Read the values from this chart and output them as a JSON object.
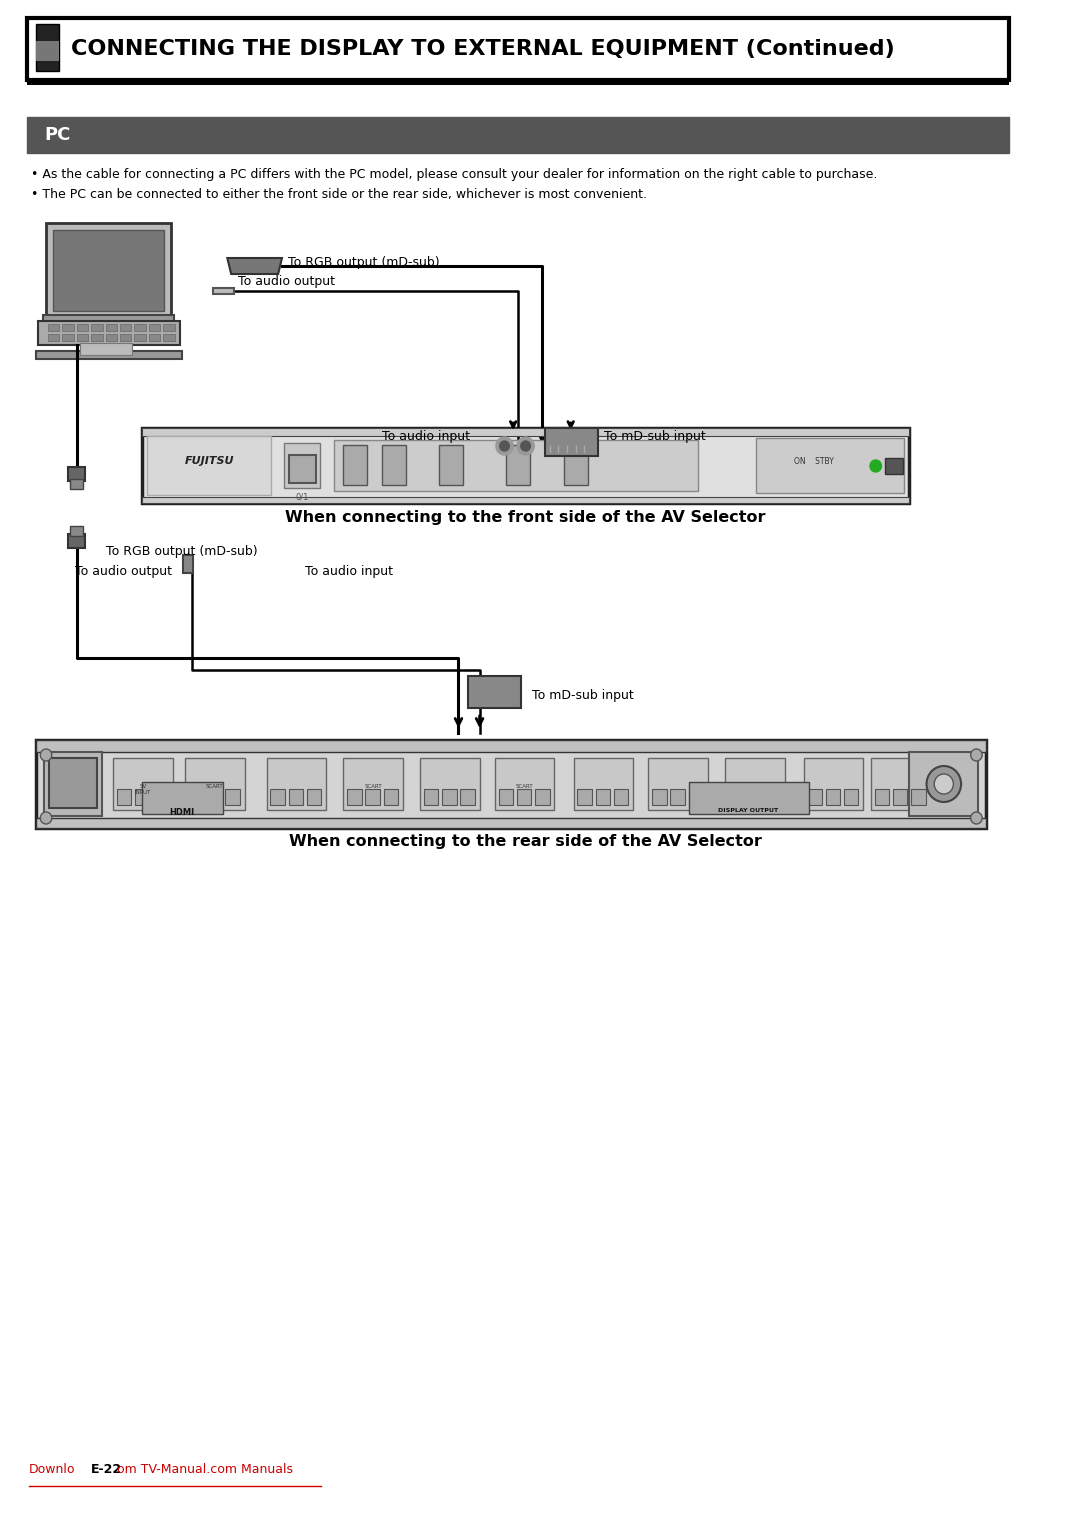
{
  "title": "CONNECTING THE DISPLAY TO EXTERNAL EQUIPMENT (Continued)",
  "section_title": "PC",
  "bullet1": "As the cable for connecting a PC differs with the PC model, please consult your dealer for information on the right cable to purchase.",
  "bullet2": "The PC can be connected to either the front side or the rear side, whichever is most convenient.",
  "front_caption": "When connecting to the front side of the AV Selector",
  "rear_caption": "When connecting to the rear side of the AV Selector",
  "label_rgb_out": "To RGB output (mD-sub)",
  "label_audio_out_top": "To audio output",
  "label_audio_in_top": "To audio input",
  "label_mdsub_top": "To mD-sub input",
  "label_rgb_out2": "To RGB output (mD-sub)",
  "label_audio_out2": "To audio output",
  "label_audio_in2": "To audio input",
  "label_mdsub2": "To mD-sub input",
  "footer_download": "Downlo",
  "footer_page": "E-22",
  "footer_rest": "om TV-Manual.com Manuals",
  "bg_color": "#ffffff",
  "header_bg": "#000000",
  "header_text_color": "#ffffff",
  "section_bg": "#555555",
  "section_text_color": "#ffffff",
  "body_text_color": "#000000",
  "footer_color": "#cc0000"
}
